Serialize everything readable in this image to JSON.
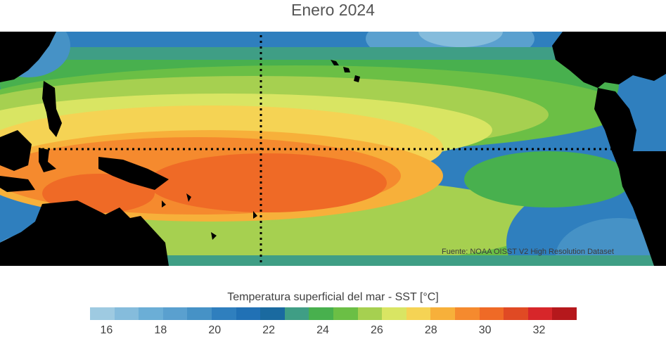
{
  "title": "Enero 2024",
  "source": "Fuente: NOAA OISST V2 High Resolution Dataset",
  "colorbar": {
    "title": "Temperatura superficial del mar - SST  [°C]",
    "colors": [
      "#9ecae1",
      "#85bcdc",
      "#6baed6",
      "#5aa0cf",
      "#4692c6",
      "#2f7fbe",
      "#2171b5",
      "#1a6aa0",
      "#3f9e85",
      "#48b04e",
      "#6bbf45",
      "#a6d050",
      "#d9e563",
      "#f5d354",
      "#f7b03a",
      "#f58a2e",
      "#ef6a26",
      "#e04a24",
      "#d7262a",
      "#b5181c"
    ],
    "tick_labels": [
      "16",
      "18",
      "20",
      "22",
      "24",
      "26",
      "28",
      "30",
      "32"
    ],
    "tick_values": [
      16,
      18,
      20,
      22,
      24,
      26,
      28,
      30,
      32
    ],
    "range": [
      15,
      33
    ]
  }
}
